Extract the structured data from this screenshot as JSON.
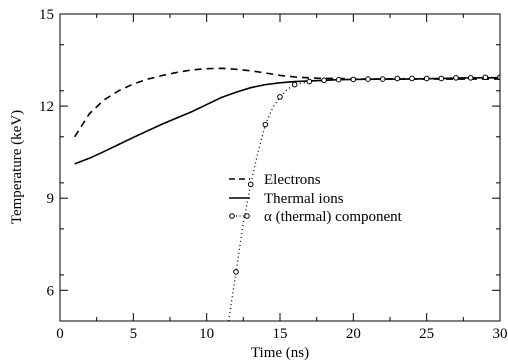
{
  "chart_data": {
    "type": "line",
    "title": "",
    "xlabel": "Time (ns)",
    "ylabel": "Temperature (keV)",
    "xlim": [
      0,
      30
    ],
    "ylim": [
      5,
      15
    ],
    "x_ticks": [
      0,
      5,
      10,
      15,
      20,
      25,
      30
    ],
    "y_ticks": [
      6,
      9,
      12,
      15
    ],
    "grid": false,
    "legend_position": "center-right",
    "series": [
      {
        "name": "Electrons",
        "style": "dashed",
        "marker": "none",
        "color": "#000000",
        "x": [
          1,
          2,
          3,
          4,
          5,
          6,
          7,
          8,
          9,
          10,
          11,
          12,
          13,
          14,
          15,
          16,
          17,
          18,
          19,
          20,
          22,
          24,
          26,
          28,
          30
        ],
        "y": [
          11.0,
          11.75,
          12.2,
          12.5,
          12.72,
          12.88,
          13.0,
          13.1,
          13.18,
          13.22,
          13.23,
          13.2,
          13.15,
          13.08,
          13.0,
          12.95,
          12.92,
          12.9,
          12.9,
          12.88,
          12.88,
          12.88,
          12.88,
          12.88,
          12.88
        ]
      },
      {
        "name": "Thermal ions",
        "style": "solid",
        "marker": "none",
        "color": "#000000",
        "x": [
          1,
          2,
          3,
          4,
          5,
          6,
          7,
          8,
          9,
          10,
          11,
          12,
          13,
          14,
          15,
          16,
          17,
          18,
          19,
          20,
          22,
          24,
          26,
          28,
          30
        ],
        "y": [
          10.12,
          10.3,
          10.52,
          10.75,
          10.98,
          11.2,
          11.42,
          11.62,
          11.82,
          12.05,
          12.28,
          12.45,
          12.6,
          12.7,
          12.76,
          12.8,
          12.82,
          12.84,
          12.86,
          12.87,
          12.88,
          12.88,
          12.9,
          12.92,
          12.92
        ]
      },
      {
        "name": "α (thermal) component",
        "style": "dotted",
        "marker": "circle",
        "color": "#000000",
        "x": [
          11.5,
          12.0,
          12.5,
          13.0,
          13.5,
          14.0,
          14.5,
          15.0,
          15.5,
          16.0,
          17.0,
          18.0,
          19.0,
          20.0,
          21.0,
          22.0,
          23.0,
          24.0,
          25.0,
          26.0,
          27.0,
          28.0,
          29.0,
          30.0
        ],
        "y": [
          5.0,
          6.6,
          8.2,
          9.45,
          10.5,
          11.4,
          11.95,
          12.3,
          12.55,
          12.7,
          12.8,
          12.84,
          12.86,
          12.87,
          12.88,
          12.88,
          12.9,
          12.9,
          12.9,
          12.9,
          12.92,
          12.92,
          12.94,
          12.94
        ]
      }
    ],
    "marker_x": [
      12.0,
      13.0,
      14.0,
      15.0,
      16.0,
      17.0,
      18.0,
      19.0,
      20.0,
      21.0,
      22.0,
      23.0,
      24.0,
      25.0,
      26.0,
      27.0,
      28.0,
      29.0,
      30.0
    ]
  }
}
